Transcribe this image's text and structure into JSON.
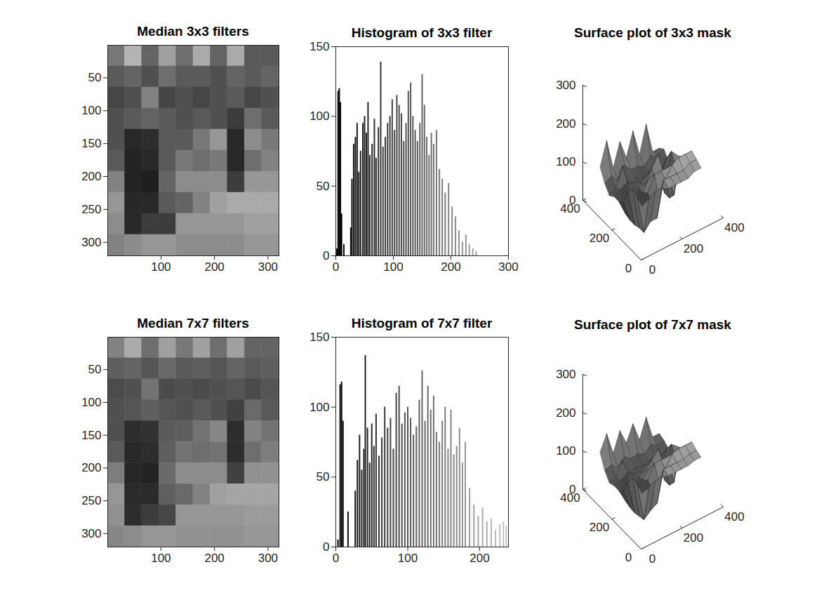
{
  "chart_data": [
    {
      "type": "image",
      "title": "Median 3x3 filters",
      "x": [
        16.5,
        48.5,
        80.5,
        112.5,
        144.5,
        176.5,
        208.5,
        240.5,
        272.5,
        304.5
      ],
      "y": [
        16.5,
        48.5,
        80.5,
        112.5,
        144.5,
        176.5,
        208.5,
        240.5,
        272.5,
        304.5
      ],
      "z": [
        [
          120,
          180,
          100,
          160,
          110,
          170,
          100,
          170,
          90,
          90
        ],
        [
          90,
          100,
          80,
          110,
          90,
          90,
          80,
          100,
          90,
          100
        ],
        [
          70,
          80,
          130,
          70,
          80,
          70,
          80,
          90,
          70,
          80
        ],
        [
          80,
          90,
          100,
          90,
          80,
          90,
          80,
          60,
          110,
          90
        ],
        [
          80,
          40,
          45,
          90,
          90,
          120,
          150,
          40,
          140,
          120
        ],
        [
          90,
          35,
          40,
          90,
          120,
          110,
          120,
          40,
          110,
          130
        ],
        [
          130,
          35,
          30,
          100,
          140,
          140,
          140,
          60,
          150,
          150
        ],
        [
          150,
          40,
          40,
          90,
          100,
          130,
          160,
          170,
          170,
          170
        ],
        [
          140,
          40,
          60,
          60,
          150,
          150,
          150,
          150,
          160,
          160
        ],
        [
          130,
          140,
          150,
          150,
          140,
          140,
          140,
          140,
          150,
          150
        ]
      ],
      "clim": [
        0,
        255
      ],
      "xlim": [
        0.5,
        320.5
      ],
      "xticks": [
        100,
        200,
        300
      ],
      "ylim": [
        0.5,
        320.5
      ],
      "yticks": [
        50,
        100,
        150,
        200,
        250,
        300
      ]
    },
    {
      "type": "bar",
      "title": "Histogram of 3x3 filter",
      "x": [
        2,
        4,
        6,
        8,
        10,
        14,
        26,
        28,
        31,
        34,
        37,
        40,
        43,
        47,
        50,
        53,
        56,
        59,
        63,
        67,
        70,
        74,
        78,
        82,
        86,
        90,
        94,
        98,
        102,
        106,
        110,
        114,
        118,
        122,
        126,
        130,
        134,
        138,
        142,
        146,
        150,
        154,
        158,
        162,
        166,
        170,
        175,
        180,
        185,
        190,
        196,
        202,
        208,
        214,
        220,
        226,
        232,
        238,
        244
      ],
      "values": [
        5,
        118,
        120,
        110,
        30,
        8,
        20,
        55,
        80,
        85,
        95,
        60,
        75,
        95,
        100,
        88,
        110,
        72,
        80,
        98,
        70,
        92,
        139,
        78,
        85,
        95,
        100,
        112,
        90,
        115,
        108,
        102,
        82,
        95,
        118,
        124,
        100,
        90,
        82,
        95,
        130,
        108,
        85,
        72,
        88,
        80,
        90,
        62,
        55,
        45,
        52,
        35,
        28,
        18,
        10,
        15,
        8,
        5,
        3
      ],
      "xlim": [
        0,
        300
      ],
      "xticks": [
        0,
        100,
        200,
        300
      ],
      "ylim": [
        0,
        150
      ],
      "yticks": [
        0,
        50,
        100,
        150
      ]
    },
    {
      "type": "surface",
      "title": "Surface plot of 3x3 mask",
      "x": [
        16,
        48,
        80,
        112,
        144,
        176,
        208,
        240,
        272,
        304
      ],
      "y": [
        304,
        272,
        240,
        208,
        176,
        144,
        112,
        80,
        48,
        16
      ],
      "z": [
        [
          120,
          180,
          100,
          160,
          110,
          170,
          100,
          170,
          90,
          90
        ],
        [
          90,
          100,
          80,
          110,
          90,
          90,
          80,
          100,
          90,
          100
        ],
        [
          70,
          80,
          130,
          70,
          80,
          70,
          80,
          90,
          70,
          80
        ],
        [
          80,
          90,
          100,
          90,
          80,
          90,
          80,
          60,
          110,
          90
        ],
        [
          80,
          40,
          45,
          90,
          90,
          120,
          150,
          40,
          140,
          120
        ],
        [
          90,
          35,
          40,
          90,
          120,
          110,
          120,
          40,
          110,
          130
        ],
        [
          130,
          35,
          30,
          100,
          140,
          140,
          140,
          60,
          150,
          150
        ],
        [
          150,
          40,
          40,
          90,
          100,
          130,
          160,
          170,
          170,
          170
        ],
        [
          140,
          40,
          60,
          60,
          150,
          150,
          150,
          150,
          160,
          160
        ],
        [
          130,
          140,
          150,
          150,
          140,
          140,
          140,
          140,
          150,
          150
        ]
      ],
      "clim": [
        0,
        255
      ],
      "xlim": [
        0,
        400
      ],
      "xticks": [
        0,
        200,
        400
      ],
      "ylim": [
        0,
        400
      ],
      "yticks": [
        0,
        200,
        400
      ],
      "zlim": [
        0,
        300
      ],
      "zticks": [
        0,
        100,
        200,
        300
      ]
    },
    {
      "type": "image",
      "title": "Median 7x7 filters",
      "x": [
        16.5,
        48.5,
        80.5,
        112.5,
        144.5,
        176.5,
        208.5,
        240.5,
        272.5,
        304.5
      ],
      "y": [
        16.5,
        48.5,
        80.5,
        112.5,
        144.5,
        176.5,
        208.5,
        240.5,
        272.5,
        304.5
      ],
      "z": [
        [
          130,
          170,
          110,
          160,
          120,
          160,
          110,
          160,
          100,
          100
        ],
        [
          95,
          100,
          85,
          105,
          90,
          95,
          85,
          100,
          90,
          95
        ],
        [
          75,
          80,
          115,
          75,
          80,
          75,
          80,
          85,
          75,
          85
        ],
        [
          80,
          85,
          95,
          85,
          80,
          90,
          80,
          65,
          105,
          90
        ],
        [
          80,
          45,
          50,
          90,
          95,
          115,
          135,
          45,
          130,
          115
        ],
        [
          90,
          40,
          45,
          95,
          115,
          110,
          115,
          45,
          110,
          125
        ],
        [
          125,
          38,
          35,
          105,
          140,
          140,
          140,
          65,
          145,
          145
        ],
        [
          150,
          42,
          42,
          95,
          105,
          130,
          160,
          165,
          165,
          165
        ],
        [
          145,
          45,
          60,
          70,
          150,
          150,
          150,
          150,
          155,
          155
        ],
        [
          135,
          140,
          150,
          150,
          145,
          145,
          145,
          145,
          150,
          150
        ]
      ],
      "clim": [
        0,
        255
      ],
      "xlim": [
        0.5,
        320.5
      ],
      "xticks": [
        100,
        200,
        300
      ],
      "ylim": [
        0.5,
        320.5
      ],
      "yticks": [
        50,
        100,
        150,
        200,
        250,
        300
      ]
    },
    {
      "type": "bar",
      "title": "Histogram of 7x7 filter",
      "x": [
        3,
        6,
        8,
        10,
        17,
        27,
        30,
        33,
        36,
        39,
        41,
        44,
        47,
        50,
        53,
        56,
        60,
        64,
        68,
        72,
        76,
        80,
        84,
        88,
        92,
        96,
        100,
        104,
        108,
        112,
        116,
        120,
        124,
        128,
        132,
        136,
        140,
        144,
        148,
        152,
        156,
        160,
        164,
        168,
        172,
        176,
        180,
        186,
        192,
        198,
        204,
        210,
        216,
        222,
        228,
        233,
        237
      ],
      "values": [
        5,
        116,
        118,
        90,
        25,
        40,
        62,
        80,
        55,
        70,
        137,
        85,
        60,
        88,
        72,
        95,
        65,
        78,
        100,
        85,
        92,
        70,
        110,
        115,
        88,
        96,
        100,
        92,
        80,
        86,
        105,
        126,
        90,
        115,
        98,
        108,
        82,
        75,
        90,
        100,
        70,
        98,
        66,
        72,
        85,
        60,
        75,
        42,
        30,
        22,
        28,
        18,
        20,
        12,
        16,
        18,
        15
      ],
      "xlim": [
        0,
        240
      ],
      "xticks": [
        0,
        100,
        200
      ],
      "ylim": [
        0,
        150
      ],
      "yticks": [
        0,
        50,
        100,
        150
      ]
    },
    {
      "type": "surface",
      "title": "Surface plot of 7x7 mask",
      "x": [
        16,
        48,
        80,
        112,
        144,
        176,
        208,
        240,
        272,
        304
      ],
      "y": [
        304,
        272,
        240,
        208,
        176,
        144,
        112,
        80,
        48,
        16
      ],
      "z": [
        [
          130,
          170,
          110,
          160,
          120,
          160,
          110,
          160,
          100,
          100
        ],
        [
          95,
          100,
          85,
          105,
          90,
          95,
          85,
          100,
          90,
          95
        ],
        [
          75,
          80,
          115,
          75,
          80,
          75,
          80,
          85,
          75,
          85
        ],
        [
          80,
          85,
          95,
          85,
          80,
          90,
          80,
          65,
          105,
          90
        ],
        [
          80,
          45,
          50,
          90,
          95,
          115,
          135,
          45,
          130,
          115
        ],
        [
          90,
          40,
          45,
          95,
          115,
          110,
          115,
          45,
          110,
          125
        ],
        [
          125,
          38,
          35,
          105,
          140,
          140,
          140,
          65,
          145,
          145
        ],
        [
          150,
          42,
          42,
          95,
          105,
          130,
          160,
          165,
          165,
          165
        ],
        [
          145,
          45,
          60,
          70,
          150,
          150,
          150,
          150,
          155,
          155
        ],
        [
          135,
          140,
          150,
          150,
          145,
          145,
          145,
          145,
          150,
          150
        ]
      ],
      "clim": [
        0,
        255
      ],
      "xlim": [
        0,
        400
      ],
      "xticks": [
        0,
        200,
        400
      ],
      "ylim": [
        0,
        400
      ],
      "yticks": [
        0,
        200,
        400
      ],
      "zlim": [
        0,
        300
      ],
      "zticks": [
        0,
        100,
        200,
        300
      ]
    }
  ]
}
